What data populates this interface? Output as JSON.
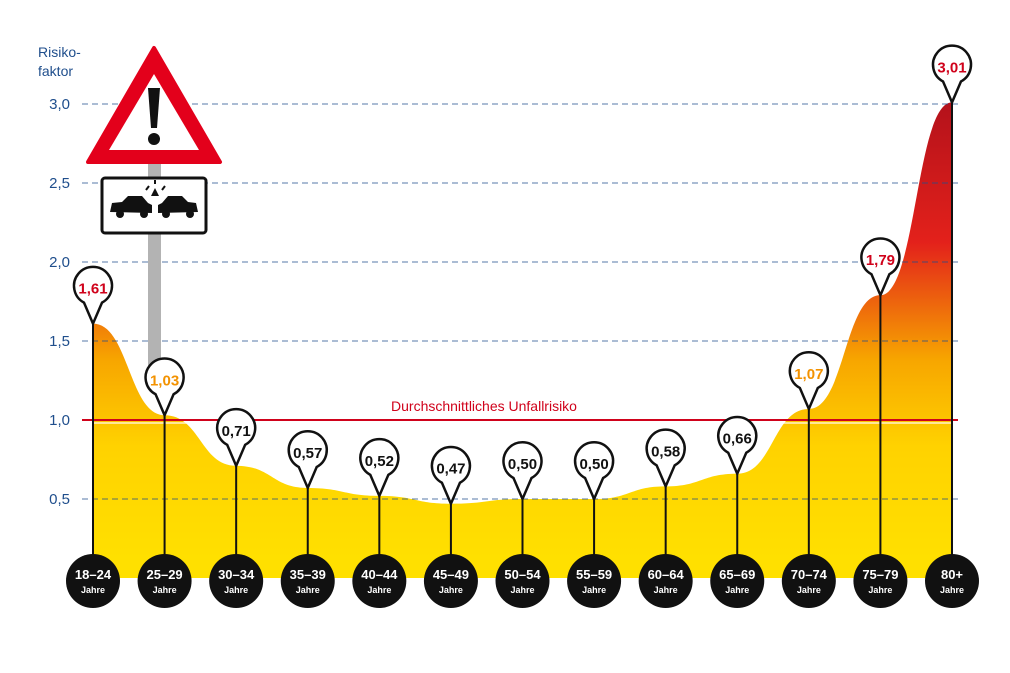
{
  "chart_data": {
    "type": "area",
    "ylabel_line1": "Risiko-",
    "ylabel_line2": "faktor",
    "ylim": [
      0,
      3.0
    ],
    "yticks": [
      {
        "value": 0.5,
        "label": "0,5"
      },
      {
        "value": 1.0,
        "label": "1,0"
      },
      {
        "value": 1.5,
        "label": "1,5"
      },
      {
        "value": 2.0,
        "label": "2,0"
      },
      {
        "value": 2.5,
        "label": "2,5"
      },
      {
        "value": 3.0,
        "label": "3,0"
      }
    ],
    "grid": "dashed horizontal",
    "reference_line": {
      "value": 1.0,
      "label": "Durchschnittliches Unfallrisiko",
      "color": "#d0021b"
    },
    "unit_label": "Jahre",
    "categories": [
      "18–24",
      "25–29",
      "30–34",
      "35–39",
      "40–44",
      "45–49",
      "50–54",
      "55–59",
      "60–64",
      "65–69",
      "70–74",
      "75–79",
      "80+"
    ],
    "values": [
      1.61,
      1.03,
      0.71,
      0.57,
      0.52,
      0.47,
      0.5,
      0.5,
      0.58,
      0.66,
      1.07,
      1.79,
      3.01
    ],
    "value_labels": [
      "1,61",
      "1,03",
      "0,71",
      "0,57",
      "0,52",
      "0,47",
      "0,50",
      "0,50",
      "0,58",
      "0,66",
      "1,07",
      "1,79",
      "3,01"
    ],
    "colors": {
      "axis_text": "#1f4e8c",
      "above_average_high": "#d0021b",
      "above_average_low": "#f39200",
      "below_average": "#111111",
      "fill_low": "#ffd200",
      "fill_high": "#b5121b"
    }
  }
}
